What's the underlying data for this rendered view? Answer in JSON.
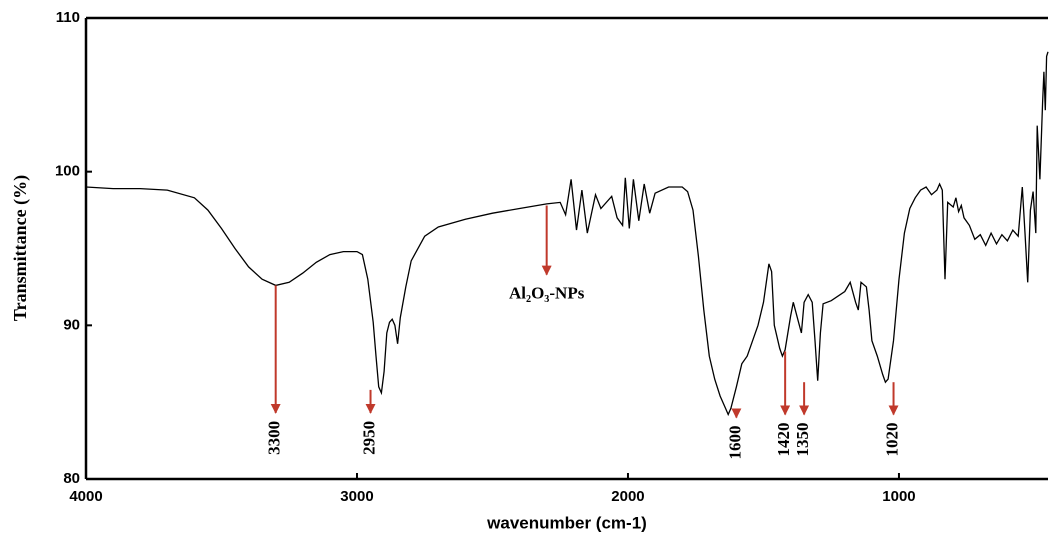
{
  "chart_data": {
    "type": "line",
    "x_label": "wavenumber (cm-1)",
    "y_label": "Transmittance (%)",
    "color": "#000000",
    "xlim": [
      4000,
      450
    ],
    "ylim": [
      80,
      110
    ],
    "xticks": [
      4000,
      3000,
      2000,
      1000
    ],
    "yticks": [
      80,
      90,
      100,
      110
    ],
    "x": [
      4000,
      3900,
      3800,
      3700,
      3600,
      3550,
      3500,
      3450,
      3400,
      3350,
      3300,
      3250,
      3200,
      3150,
      3100,
      3050,
      3000,
      2980,
      2960,
      2940,
      2930,
      2920,
      2910,
      2900,
      2890,
      2880,
      2870,
      2860,
      2850,
      2840,
      2820,
      2800,
      2750,
      2700,
      2600,
      2500,
      2400,
      2300,
      2250,
      2230,
      2210,
      2190,
      2170,
      2150,
      2120,
      2100,
      2060,
      2040,
      2020,
      2010,
      1995,
      1980,
      1960,
      1940,
      1920,
      1900,
      1850,
      1800,
      1780,
      1760,
      1740,
      1720,
      1700,
      1680,
      1660,
      1640,
      1630,
      1620,
      1600,
      1580,
      1560,
      1540,
      1520,
      1500,
      1480,
      1470,
      1460,
      1440,
      1430,
      1420,
      1400,
      1390,
      1375,
      1360,
      1350,
      1335,
      1320,
      1310,
      1300,
      1290,
      1280,
      1250,
      1200,
      1180,
      1160,
      1150,
      1140,
      1120,
      1110,
      1100,
      1080,
      1060,
      1050,
      1040,
      1020,
      1000,
      980,
      960,
      940,
      920,
      900,
      880,
      860,
      850,
      840,
      830,
      820,
      800,
      790,
      780,
      770,
      760,
      740,
      720,
      700,
      680,
      660,
      640,
      620,
      600,
      580,
      560,
      545,
      535,
      525,
      515,
      505,
      495,
      490,
      480,
      470,
      465,
      460,
      455,
      450
    ],
    "values": [
      99.0,
      98.9,
      98.9,
      98.8,
      98.3,
      97.5,
      96.3,
      95.0,
      93.8,
      93.0,
      92.6,
      92.8,
      93.4,
      94.1,
      94.6,
      94.8,
      94.8,
      94.6,
      93.0,
      90.2,
      88.0,
      86.0,
      85.6,
      87.0,
      89.5,
      90.2,
      90.4,
      90.0,
      88.8,
      90.5,
      92.5,
      94.2,
      95.8,
      96.4,
      96.9,
      97.3,
      97.6,
      97.9,
      98.0,
      97.2,
      99.5,
      96.2,
      98.8,
      96.0,
      98.5,
      97.6,
      98.4,
      97.0,
      96.5,
      99.6,
      96.3,
      99.5,
      96.8,
      99.2,
      97.3,
      98.6,
      99.0,
      99.0,
      98.7,
      97.5,
      94.5,
      91.0,
      88.0,
      86.5,
      85.4,
      84.6,
      84.2,
      84.6,
      86.0,
      87.5,
      88.0,
      89.0,
      90.0,
      91.5,
      94.0,
      93.5,
      90.0,
      88.5,
      88.0,
      88.4,
      90.6,
      91.5,
      90.5,
      89.5,
      91.5,
      92.0,
      91.5,
      89.0,
      86.4,
      89.5,
      91.4,
      91.6,
      92.2,
      92.8,
      91.5,
      91.0,
      92.8,
      92.5,
      91.0,
      89.0,
      88.0,
      86.8,
      86.3,
      86.5,
      89.0,
      93.0,
      96.0,
      97.6,
      98.3,
      98.8,
      99.0,
      98.5,
      98.8,
      99.2,
      98.8,
      93.0,
      98.0,
      97.7,
      98.3,
      97.4,
      97.8,
      97.0,
      96.5,
      95.6,
      95.9,
      95.2,
      96.0,
      95.3,
      95.9,
      95.5,
      96.2,
      95.8,
      99.0,
      96.0,
      92.8,
      97.5,
      98.7,
      96.0,
      103.0,
      99.5,
      104.5,
      106.5,
      104.0,
      107.5,
      107.8
    ],
    "annotations": [
      {
        "x": 3300,
        "y_from": 92.6,
        "y_to": 84.3
      },
      {
        "x": 2950,
        "y_from": 85.8,
        "y_to": 84.3
      },
      {
        "x": 1600,
        "y_from": 84.4,
        "y_to": 84.0
      },
      {
        "x": 1420,
        "y_from": 88.3,
        "y_to": 84.2
      },
      {
        "x": 1350,
        "y_from": 86.3,
        "y_to": 84.2
      },
      {
        "x": 1020,
        "y_from": 86.3,
        "y_to": 84.2
      }
    ],
    "label_annotation": {
      "text": "Al₂O₃-NPs",
      "x": 2300,
      "y_from": 97.8,
      "y_to": 93.3
    }
  }
}
